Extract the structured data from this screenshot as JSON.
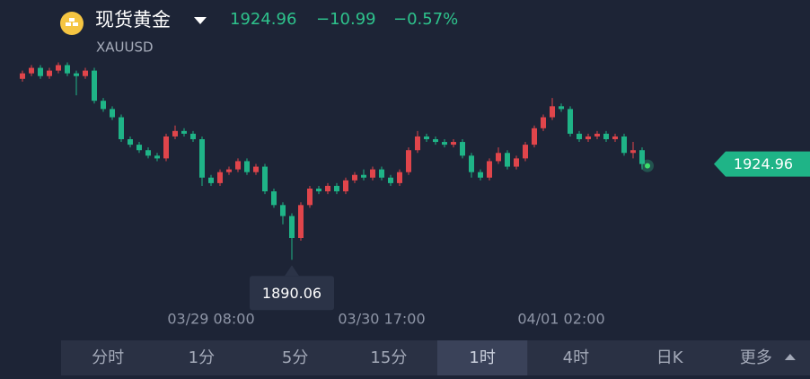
{
  "header": {
    "title": "现货黄金",
    "price": "1924.96",
    "change": "−10.99",
    "change_pct": "−0.57%",
    "symbol": "XAUUSD"
  },
  "chart_data": {
    "type": "candlestick",
    "ylim": [
      1880,
      1970
    ],
    "up_color": "#e0454b",
    "down_color": "#1fb487",
    "categories": [
      null,
      null,
      null,
      null,
      null,
      null,
      null,
      null,
      null,
      null,
      null,
      null,
      null,
      null,
      null,
      null,
      null,
      null,
      null,
      null,
      null,
      "03/29 08:00",
      null,
      null,
      null,
      null,
      null,
      null,
      null,
      null,
      null,
      null,
      null,
      null,
      null,
      null,
      null,
      null,
      null,
      null,
      "03/30 17:00",
      null,
      null,
      null,
      null,
      null,
      null,
      null,
      null,
      null,
      null,
      null,
      null,
      null,
      null,
      null,
      null,
      null,
      null,
      null,
      "04/01 02:00",
      null,
      null,
      null,
      null,
      null,
      null,
      null,
      null,
      null
    ],
    "series": [
      {
        "open": [
          1956,
          1958,
          1960,
          1957,
          1959,
          1961,
          1958,
          1957,
          1959,
          1948,
          1945,
          1942,
          1934,
          1932,
          1930,
          1928,
          1927,
          1935,
          1937,
          1936,
          1934,
          1920,
          1918,
          1922,
          1923,
          1926,
          1922,
          1924,
          1915,
          1910,
          1906,
          1898,
          1910,
          1916,
          1915,
          1917,
          1915,
          1919,
          1921,
          1920,
          1923,
          1920,
          1918,
          1922,
          1930,
          1935,
          1934,
          1933,
          1932,
          1933,
          1928,
          1922,
          1920,
          1926,
          1929,
          1924,
          1927,
          1932,
          1938,
          1942,
          1946,
          1945,
          1936,
          1934,
          1935,
          1936,
          1934,
          1935,
          1929,
          1930
        ],
        "high": [
          1959,
          1961,
          1961,
          1960,
          1962,
          1962,
          1959,
          1960,
          1960,
          1949,
          1946,
          1943,
          1935,
          1933,
          1931,
          1929,
          1936,
          1939,
          1938,
          1937,
          1935,
          1921,
          1923,
          1924,
          1927,
          1927,
          1925,
          1925,
          1916,
          1911,
          1907,
          1911,
          1917,
          1917,
          1918,
          1918,
          1920,
          1922,
          1923,
          1924,
          1924,
          1921,
          1923,
          1931,
          1937,
          1936,
          1935,
          1934,
          1934,
          1934,
          1929,
          1923,
          1927,
          1931,
          1930,
          1928,
          1933,
          1939,
          1943,
          1949,
          1947,
          1946,
          1937,
          1936,
          1937,
          1937,
          1936,
          1936,
          1933,
          1931
        ],
        "low": [
          1955,
          1957,
          1956,
          1956,
          1958,
          1957,
          1950,
          1956,
          1947,
          1944,
          1941,
          1933,
          1931,
          1929,
          1927,
          1926,
          1926,
          1934,
          1935,
          1933,
          1917,
          1917,
          1917,
          1921,
          1922,
          1921,
          1921,
          1914,
          1909,
          1903,
          1890.06,
          1897,
          1909,
          1914,
          1914,
          1914,
          1914,
          1918,
          1919,
          1919,
          1919,
          1917,
          1917,
          1921,
          1929,
          1933,
          1932,
          1931,
          1931,
          1927,
          1920,
          1919,
          1919,
          1925,
          1923,
          1923,
          1926,
          1931,
          1937,
          1941,
          1944,
          1935,
          1933,
          1933,
          1934,
          1933,
          1933,
          1928,
          1927,
          1923
        ],
        "close": [
          1958,
          1960,
          1957,
          1959,
          1961,
          1958,
          1957,
          1959,
          1948,
          1945,
          1942,
          1934,
          1932,
          1930,
          1928,
          1927,
          1935,
          1937,
          1936,
          1934,
          1920,
          1918,
          1922,
          1923,
          1926,
          1922,
          1924,
          1915,
          1910,
          1906,
          1898,
          1910,
          1916,
          1915,
          1917,
          1915,
          1919,
          1921,
          1920,
          1923,
          1920,
          1918,
          1922,
          1930,
          1935,
          1934,
          1933,
          1932,
          1933,
          1928,
          1922,
          1920,
          1926,
          1929,
          1924,
          1927,
          1932,
          1938,
          1942,
          1946,
          1945,
          1936,
          1934,
          1935,
          1936,
          1934,
          1935,
          1929,
          1930,
          1924.96
        ]
      }
    ]
  },
  "tabs": [
    "分时",
    "1分",
    "5分",
    "15分",
    "1时",
    "4时",
    "日K",
    "更多"
  ],
  "active_tab": 4
}
